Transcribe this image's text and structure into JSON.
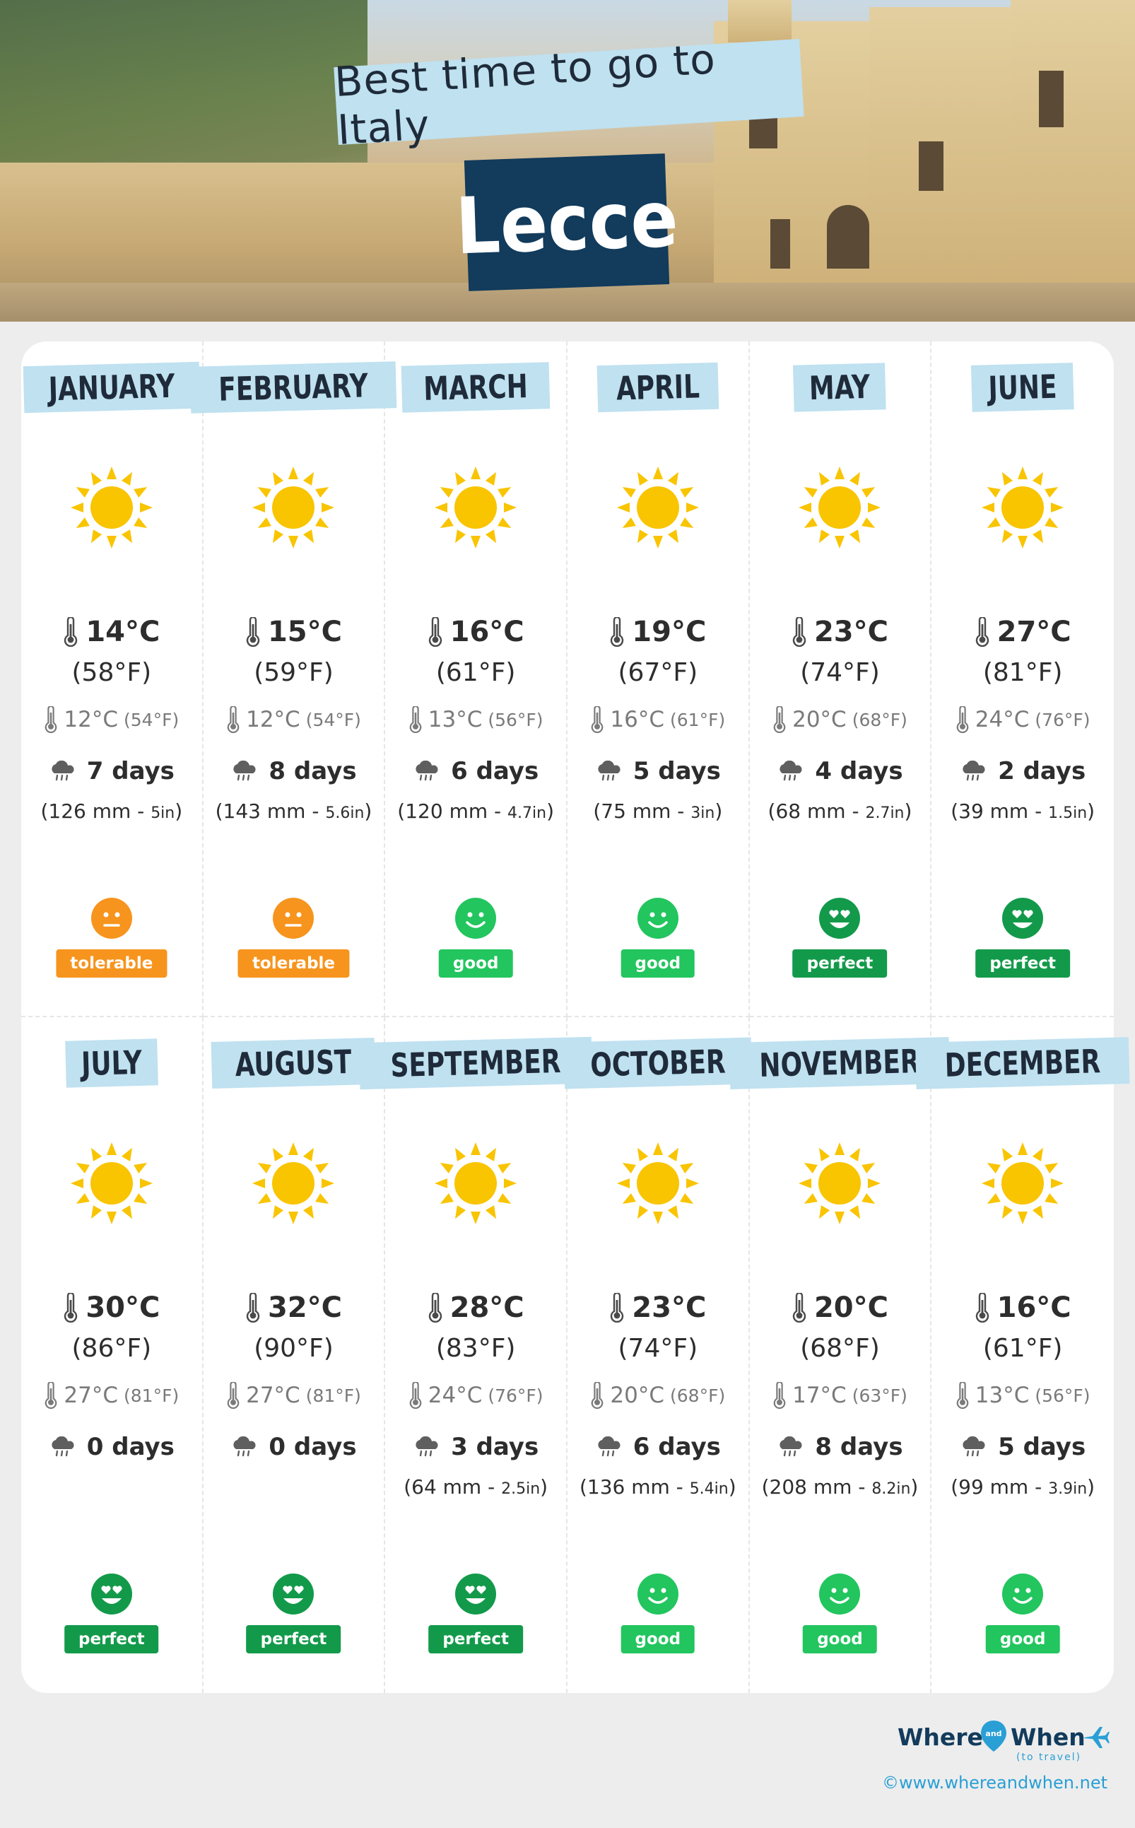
{
  "header": {
    "subtitle": "Best time to go to Italy",
    "city": "Lecce"
  },
  "colors": {
    "tolerable": "#f7941d",
    "good": "#22c55e",
    "perfect": "#129a4a",
    "sun": "#f9c400"
  },
  "months": [
    {
      "name": "JANUARY",
      "weather_icon": "sun-icon",
      "temp_high": "14°C",
      "temp_high_f": "(58°F)",
      "temp_low": "12°C",
      "temp_low_f": "(54°F)",
      "rain_days": "7 days",
      "rain_mm": "(126 mm",
      "rain_in": "5in",
      "rating": "tolerable"
    },
    {
      "name": "FEBRUARY",
      "weather_icon": "sun-icon",
      "temp_high": "15°C",
      "temp_high_f": "(59°F)",
      "temp_low": "12°C",
      "temp_low_f": "(54°F)",
      "rain_days": "8 days",
      "rain_mm": "(143 mm",
      "rain_in": "5.6in",
      "rating": "tolerable"
    },
    {
      "name": "MARCH",
      "weather_icon": "sun-icon",
      "temp_high": "16°C",
      "temp_high_f": "(61°F)",
      "temp_low": "13°C",
      "temp_low_f": "(56°F)",
      "rain_days": "6 days",
      "rain_mm": "(120 mm",
      "rain_in": "4.7in",
      "rating": "good"
    },
    {
      "name": "APRIL",
      "weather_icon": "sun-icon",
      "temp_high": "19°C",
      "temp_high_f": "(67°F)",
      "temp_low": "16°C",
      "temp_low_f": "(61°F)",
      "rain_days": "5 days",
      "rain_mm": "(75 mm",
      "rain_in": "3in",
      "rating": "good"
    },
    {
      "name": "MAY",
      "weather_icon": "sun-icon",
      "temp_high": "23°C",
      "temp_high_f": "(74°F)",
      "temp_low": "20°C",
      "temp_low_f": "(68°F)",
      "rain_days": "4 days",
      "rain_mm": "(68 mm",
      "rain_in": "2.7in",
      "rating": "perfect"
    },
    {
      "name": "JUNE",
      "weather_icon": "sun-icon",
      "temp_high": "27°C",
      "temp_high_f": "(81°F)",
      "temp_low": "24°C",
      "temp_low_f": "(76°F)",
      "rain_days": "2 days",
      "rain_mm": "(39 mm",
      "rain_in": "1.5in",
      "rating": "perfect"
    },
    {
      "name": "JULY",
      "weather_icon": "sun-icon",
      "temp_high": "30°C",
      "temp_high_f": "(86°F)",
      "temp_low": "27°C",
      "temp_low_f": "(81°F)",
      "rain_days": "0 days",
      "rain_mm": "",
      "rain_in": "",
      "rating": "perfect"
    },
    {
      "name": "AUGUST",
      "weather_icon": "sun-icon",
      "temp_high": "32°C",
      "temp_high_f": "(90°F)",
      "temp_low": "27°C",
      "temp_low_f": "(81°F)",
      "rain_days": "0 days",
      "rain_mm": "",
      "rain_in": "",
      "rating": "perfect"
    },
    {
      "name": "SEPTEMBER",
      "weather_icon": "sun-icon",
      "temp_high": "28°C",
      "temp_high_f": "(83°F)",
      "temp_low": "24°C",
      "temp_low_f": "(76°F)",
      "rain_days": "3 days",
      "rain_mm": "(64 mm",
      "rain_in": "2.5in",
      "rating": "perfect"
    },
    {
      "name": "OCTOBER",
      "weather_icon": "sun-icon",
      "temp_high": "23°C",
      "temp_high_f": "(74°F)",
      "temp_low": "20°C",
      "temp_low_f": "(68°F)",
      "rain_days": "6 days",
      "rain_mm": "(136 mm",
      "rain_in": "5.4in",
      "rating": "good"
    },
    {
      "name": "NOVEMBER",
      "weather_icon": "sun-icon",
      "temp_high": "20°C",
      "temp_high_f": "(68°F)",
      "temp_low": "17°C",
      "temp_low_f": "(63°F)",
      "rain_days": "8 days",
      "rain_mm": "(208 mm",
      "rain_in": "8.2in",
      "rating": "good"
    },
    {
      "name": "DECEMBER",
      "weather_icon": "sun-icon",
      "temp_high": "16°C",
      "temp_high_f": "(61°F)",
      "temp_low": "13°C",
      "temp_low_f": "(56°F)",
      "rain_days": "5 days",
      "rain_mm": "(99 mm",
      "rain_in": "3.9in",
      "rating": "good"
    }
  ],
  "footer": {
    "logo_where": "Where",
    "logo_and": "and",
    "logo_when": "When",
    "logo_tagline": "(to travel)",
    "copyright": "©www.whereandwhen.net"
  }
}
